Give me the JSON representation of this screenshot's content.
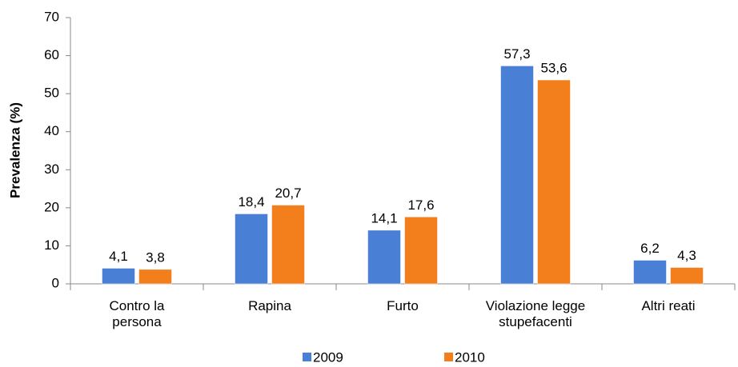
{
  "chart_data": {
    "type": "bar",
    "y_label": "Prevalenza (%)",
    "categories": [
      "Contro la\npersona",
      "Rapina",
      "Furto",
      "Violazione legge\nstupefacenti",
      "Altri reati"
    ],
    "series": [
      {
        "name": "2009",
        "color": "#4a7fd6",
        "values": [
          4.1,
          18.4,
          14.1,
          57.3,
          6.2
        ],
        "value_labels": [
          "4,1",
          "18,4",
          "14,1",
          "57,3",
          "6,2"
        ]
      },
      {
        "name": "2010",
        "color": "#f27f1b",
        "values": [
          3.8,
          20.7,
          17.6,
          53.6,
          4.3
        ],
        "value_labels": [
          "3,8",
          "20,7",
          "17,6",
          "53,6",
          "4,3"
        ]
      }
    ],
    "ylim": [
      0,
      70
    ],
    "yticks": [
      0,
      10,
      20,
      30,
      40,
      50,
      60,
      70
    ],
    "legend": "bottom"
  }
}
